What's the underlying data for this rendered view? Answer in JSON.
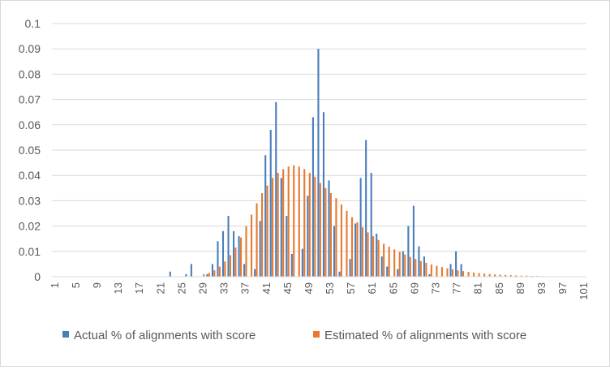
{
  "chart_data": {
    "type": "bar",
    "title": "",
    "xlabel": "",
    "ylabel": "",
    "ylim": [
      0,
      0.1
    ],
    "yticks": [
      "0",
      "0.01",
      "0.02",
      "0.03",
      "0.04",
      "0.05",
      "0.06",
      "0.07",
      "0.08",
      "0.09",
      "0.1"
    ],
    "grid": true,
    "legend_position": "bottom",
    "x_start": 1,
    "x_end": 101,
    "xtick_labels": [
      "1",
      "5",
      "9",
      "13",
      "17",
      "21",
      "25",
      "29",
      "33",
      "37",
      "41",
      "45",
      "49",
      "53",
      "57",
      "61",
      "65",
      "69",
      "73",
      "77",
      "81",
      "85",
      "89",
      "93",
      "97",
      "101"
    ],
    "series": [
      {
        "name": "Actual % of alignments with score",
        "color": "#4a7ebb",
        "points": [
          [
            23,
            0.002
          ],
          [
            26,
            0.001
          ],
          [
            27,
            0.005
          ],
          [
            30,
            0.001
          ],
          [
            31,
            0.005
          ],
          [
            32,
            0.014
          ],
          [
            33,
            0.018
          ],
          [
            34,
            0.024
          ],
          [
            35,
            0.018
          ],
          [
            36,
            0.016
          ],
          [
            37,
            0.005
          ],
          [
            39,
            0.003
          ],
          [
            40,
            0.022
          ],
          [
            41,
            0.048
          ],
          [
            42,
            0.058
          ],
          [
            43,
            0.069
          ],
          [
            44,
            0.039
          ],
          [
            45,
            0.024
          ],
          [
            46,
            0.009
          ],
          [
            48,
            0.011
          ],
          [
            49,
            0.032
          ],
          [
            50,
            0.063
          ],
          [
            51,
            0.09
          ],
          [
            52,
            0.065
          ],
          [
            53,
            0.038
          ],
          [
            54,
            0.02
          ],
          [
            55,
            0.002
          ],
          [
            57,
            0.007
          ],
          [
            58,
            0.021
          ],
          [
            59,
            0.039
          ],
          [
            60,
            0.054
          ],
          [
            61,
            0.041
          ],
          [
            62,
            0.017
          ],
          [
            63,
            0.008
          ],
          [
            64,
            0.004
          ],
          [
            66,
            0.003
          ],
          [
            67,
            0.01
          ],
          [
            68,
            0.02
          ],
          [
            69,
            0.028
          ],
          [
            70,
            0.012
          ],
          [
            71,
            0.008
          ],
          [
            72,
            0.001
          ],
          [
            76,
            0.005
          ],
          [
            77,
            0.01
          ],
          [
            78,
            0.005
          ]
        ]
      },
      {
        "name": "Estimated % of alignments with score",
        "color": "#e8792d",
        "points": [
          [
            29,
            0.001
          ],
          [
            30,
            0.0015
          ],
          [
            31,
            0.0025
          ],
          [
            32,
            0.004
          ],
          [
            33,
            0.006
          ],
          [
            34,
            0.0085
          ],
          [
            35,
            0.0115
          ],
          [
            36,
            0.0155
          ],
          [
            37,
            0.02
          ],
          [
            38,
            0.0245
          ],
          [
            39,
            0.029
          ],
          [
            40,
            0.033
          ],
          [
            41,
            0.036
          ],
          [
            42,
            0.039
          ],
          [
            43,
            0.041
          ],
          [
            44,
            0.0425
          ],
          [
            45,
            0.0435
          ],
          [
            46,
            0.044
          ],
          [
            47,
            0.0435
          ],
          [
            48,
            0.0425
          ],
          [
            49,
            0.041
          ],
          [
            50,
            0.0395
          ],
          [
            51,
            0.037
          ],
          [
            52,
            0.035
          ],
          [
            53,
            0.033
          ],
          [
            54,
            0.031
          ],
          [
            55,
            0.0285
          ],
          [
            56,
            0.026
          ],
          [
            57,
            0.0235
          ],
          [
            58,
            0.0215
          ],
          [
            59,
            0.0195
          ],
          [
            60,
            0.0175
          ],
          [
            61,
            0.016
          ],
          [
            62,
            0.0145
          ],
          [
            63,
            0.013
          ],
          [
            64,
            0.0118
          ],
          [
            65,
            0.0108
          ],
          [
            66,
            0.0098
          ],
          [
            67,
            0.0088
          ],
          [
            68,
            0.0078
          ],
          [
            69,
            0.007
          ],
          [
            70,
            0.0062
          ],
          [
            71,
            0.0055
          ],
          [
            72,
            0.0048
          ],
          [
            73,
            0.0043
          ],
          [
            74,
            0.0038
          ],
          [
            75,
            0.0033
          ],
          [
            76,
            0.0029
          ],
          [
            77,
            0.0025
          ],
          [
            78,
            0.0022
          ],
          [
            79,
            0.0019
          ],
          [
            80,
            0.0016
          ],
          [
            81,
            0.0014
          ],
          [
            82,
            0.0012
          ],
          [
            83,
            0.001
          ],
          [
            84,
            0.0009
          ],
          [
            85,
            0.0008
          ],
          [
            86,
            0.0007
          ],
          [
            87,
            0.0006
          ],
          [
            88,
            0.0005
          ],
          [
            89,
            0.0004
          ],
          [
            90,
            0.0004
          ],
          [
            91,
            0.0003
          ],
          [
            92,
            0.0003
          ],
          [
            93,
            0.0002
          ]
        ]
      }
    ]
  }
}
